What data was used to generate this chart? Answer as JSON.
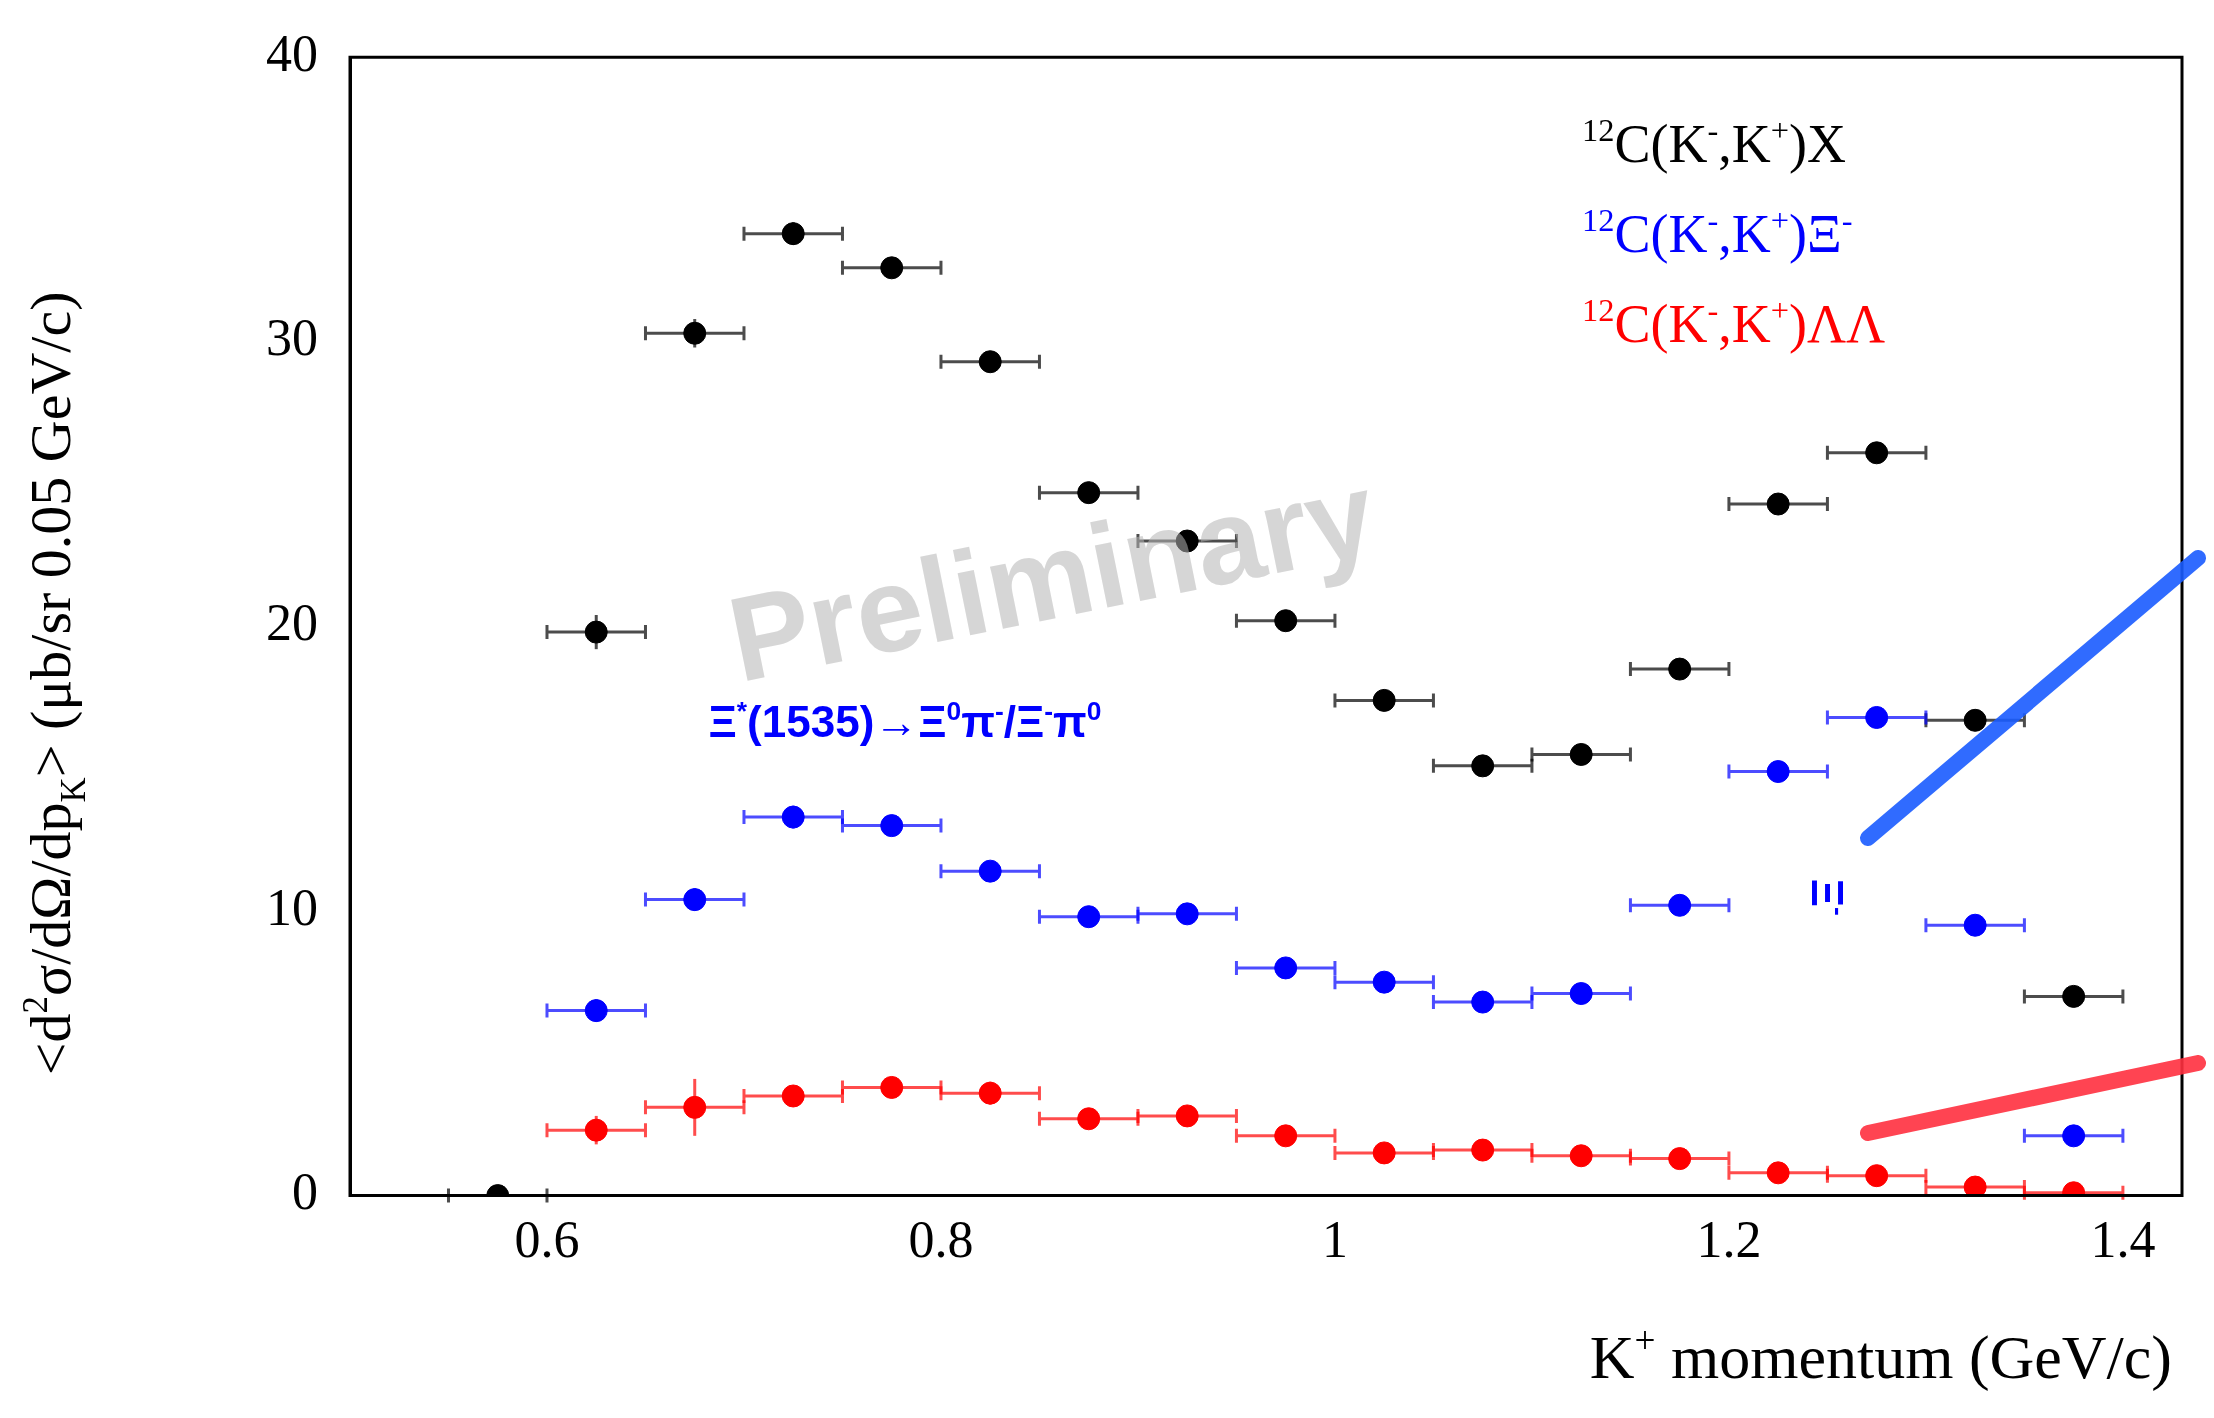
{
  "chart_data": {
    "type": "scatter",
    "xlabel": "K$^{+}$ momentum (GeV/c)",
    "ylabel": "<d$^{2}$σ/dΩ/dp$_{K}$> (μb/sr 0.05 GeV/c)",
    "x": [
      0.575,
      0.625,
      0.675,
      0.725,
      0.775,
      0.825,
      0.875,
      0.925,
      0.975,
      1.025,
      1.075,
      1.125,
      1.175,
      1.225,
      1.275,
      1.325,
      1.375
    ],
    "series": [
      {
        "name": "$^{12}$C(K$^{-}$,K$^{+}$)X",
        "color": "#000000",
        "values": [
          0,
          19.8,
          30.3,
          33.8,
          32.6,
          29.3,
          24.7,
          23.0,
          20.2,
          17.4,
          15.1,
          15.5,
          18.5,
          24.3,
          26.1,
          16.7,
          7.0
        ],
        "errors": [
          null,
          0.6,
          0.5,
          0.4,
          null,
          null,
          null,
          null,
          null,
          null,
          null,
          null,
          null,
          null,
          null,
          null,
          null
        ],
        "xerrors": [
          0.025,
          0.025,
          0.025,
          0.025,
          0.025,
          0.025,
          0.025,
          0.025,
          0.025,
          0.025,
          0.025,
          0.025,
          0.025,
          0.025,
          0.025,
          0.025,
          0.025
        ]
      },
      {
        "name": "$^{12}$C(K$^{-}$,K$^{+}$)Ξ$^{-}$",
        "color": "#0000ff",
        "values": [
          null,
          6.5,
          10.4,
          13.3,
          13.0,
          11.4,
          9.8,
          9.9,
          8.0,
          7.5,
          6.8,
          7.1,
          10.2,
          14.9,
          16.8,
          9.5,
          2.1
        ],
        "errors": [
          null,
          0.4,
          0.4,
          0.4,
          null,
          null,
          null,
          null,
          null,
          null,
          null,
          null,
          null,
          null,
          null,
          null,
          null
        ],
        "xerrors": [
          null,
          0.025,
          0.025,
          0.025,
          0.025,
          0.025,
          0.025,
          0.025,
          0.025,
          0.025,
          0.025,
          0.025,
          0.025,
          0.025,
          0.025,
          0.025,
          0.025
        ]
      },
      {
        "name": "$^{12}$C(K$^{-}$,K$^{+}$)ΛΛ",
        "color": "#ff0000",
        "values": [
          null,
          2.3,
          3.1,
          3.5,
          3.8,
          3.6,
          2.7,
          2.8,
          2.1,
          1.5,
          1.6,
          1.4,
          1.3,
          0.8,
          0.7,
          0.3,
          0.1
        ],
        "errors": [
          null,
          0.5,
          1.0,
          0.3,
          null,
          0.4,
          null,
          null,
          null,
          null,
          null,
          null,
          null,
          null,
          null,
          null,
          null
        ],
        "xerrors": [
          null,
          0.025,
          0.025,
          0.025,
          0.025,
          0.025,
          0.025,
          0.025,
          0.025,
          0.025,
          0.025,
          0.025,
          0.025,
          0.025,
          0.025,
          0.025,
          0.025
        ]
      }
    ],
    "xlim": [
      0.5,
      1.43
    ],
    "xticks": [
      0.6,
      0.8,
      1,
      1.2,
      1.4
    ],
    "ylim": [
      0,
      40
    ],
    "yticks": [
      0,
      10,
      20,
      30,
      40
    ],
    "grid": false,
    "legend": "top right",
    "marker": "circle",
    "annotations": [
      "Preliminary",
      "Ξ$^{*}$(1535)→Ξ$^{0}$π$^{-}$/Ξ$^{-}$π$^{0}$",
      "Ξ$^{-}$"
    ]
  }
}
